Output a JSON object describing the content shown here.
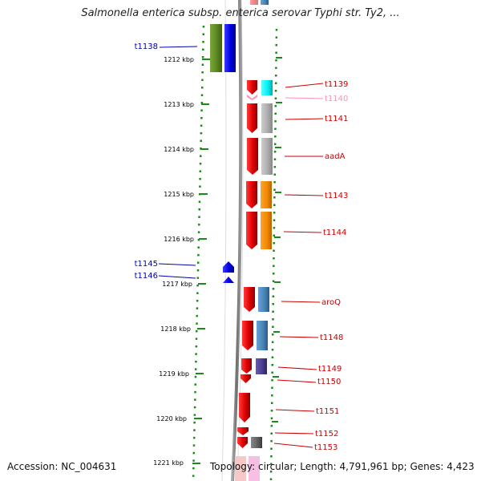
{
  "title": "Salmonella enterica subsp. enterica serovar Typhi str. Ty2, ...",
  "footer": {
    "accession": "Accession: NC_004631",
    "topology": "Topology: circular; Length: 4,791,961 bp; Genes: 4,423"
  },
  "ruler": {
    "ticks": [
      "1212 kbp",
      "1213 kbp",
      "1214 kbp",
      "1215 kbp",
      "1216 kbp",
      "1217 kbp",
      "1218 kbp",
      "1219 kbp",
      "1220 kbp",
      "1221 kbp"
    ]
  },
  "colors": {
    "forward_gene": "#e01010",
    "reverse_gene": "#1010e0",
    "backbone": "#808080",
    "scale_dots": "#1a8a1a",
    "forward_label": "#cc0000",
    "reverse_label": "#0000aa",
    "pink_label": "#ff8fb8"
  },
  "genes_reverse": [
    {
      "label": "t1138"
    },
    {
      "label": "t1145"
    },
    {
      "label": "t1146"
    }
  ],
  "genes_forward": [
    {
      "label": "t1139"
    },
    {
      "label": "t1140"
    },
    {
      "label": "t1141"
    },
    {
      "label": "aadA"
    },
    {
      "label": "t1143"
    },
    {
      "label": "t1144"
    },
    {
      "label": "aroQ"
    },
    {
      "label": "t1148"
    },
    {
      "label": "t1149"
    },
    {
      "label": "t1150"
    },
    {
      "label": "t1151"
    },
    {
      "label": "t1152"
    },
    {
      "label": "t1153"
    }
  ]
}
